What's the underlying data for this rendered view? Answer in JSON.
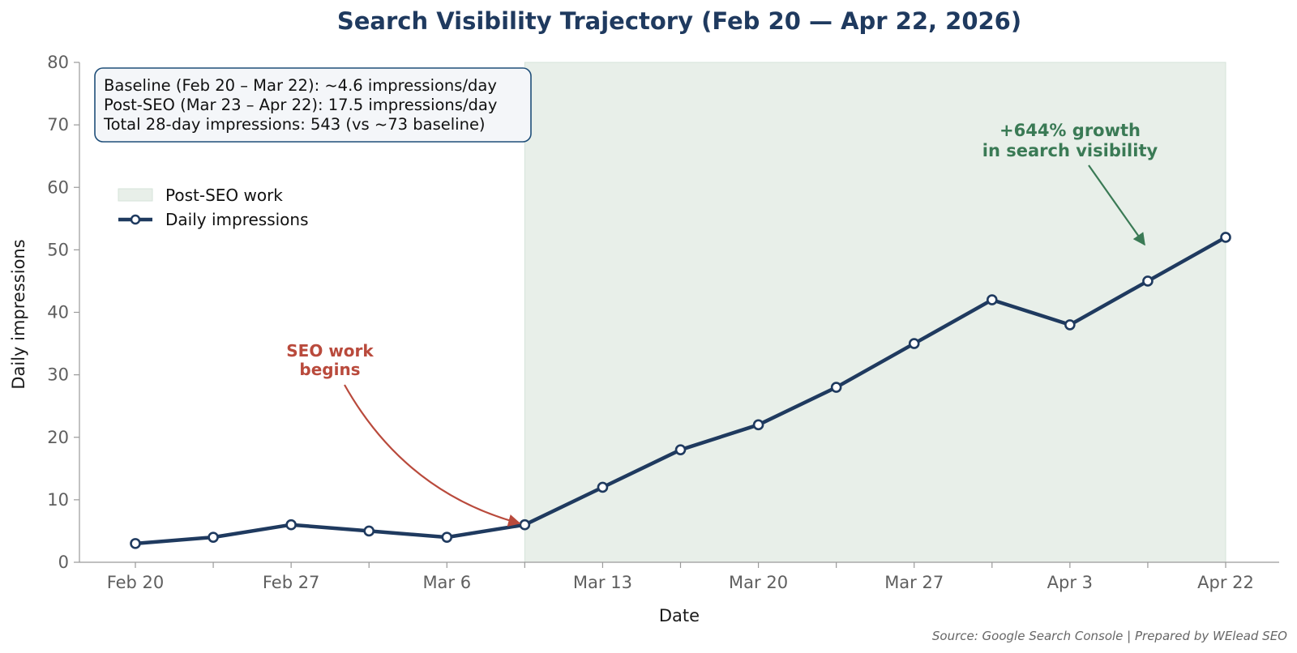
{
  "colors": {
    "line": "#1f3a5f",
    "shade": "#e8efe9",
    "red_annotation": "#b94a3c",
    "green_annotation": "#3a7a55",
    "axis": "#9a9a9a"
  },
  "chart_data": {
    "type": "line",
    "title": "Search Visibility Trajectory (Feb 20 — Apr 22, 2026)",
    "xlabel": "Date",
    "ylabel": "Daily impressions",
    "ylim": [
      0,
      80
    ],
    "y_ticks": [
      0,
      10,
      20,
      30,
      40,
      50,
      60,
      70,
      80
    ],
    "x_positions": [
      0,
      1,
      2,
      3,
      4,
      5,
      6,
      7,
      8,
      9,
      10,
      11,
      12,
      13,
      14
    ],
    "x_tick_positions": [
      0,
      1,
      2,
      3,
      4,
      5,
      6,
      7,
      8,
      9,
      10,
      11,
      12,
      13,
      14
    ],
    "x_tick_labels": [
      "Feb 20",
      "",
      "Feb 27",
      "",
      "Mar 6",
      "",
      "Mar 13",
      "",
      "Mar 20",
      "",
      "Mar 27",
      "",
      "Apr 3",
      "",
      "Apr 22"
    ],
    "series": [
      {
        "name": "Daily impressions",
        "values": [
          3,
          4,
          6,
          5,
          4,
          6,
          12,
          18,
          22,
          28,
          35,
          42,
          38,
          45,
          52
        ]
      }
    ],
    "shaded_region": {
      "label": "Post-SEO work",
      "x_start": 5,
      "x_end": 14
    },
    "legend": {
      "placement": "upper-left",
      "items": [
        {
          "label": "Post-SEO work",
          "kind": "patch"
        },
        {
          "label": "Daily impressions",
          "kind": "line"
        }
      ]
    },
    "info_box": [
      "Baseline (Feb 20 – Mar 22):  ~4.6 impressions/day",
      "Post-SEO (Mar 23 – Apr 22):  17.5 impressions/day",
      "Total 28-day impressions: 543  (vs ~73 baseline)"
    ],
    "annotations": [
      {
        "lines": [
          "SEO work",
          "begins"
        ],
        "target_x": 5,
        "target_y": 6,
        "color": "red"
      },
      {
        "lines": [
          "+644% growth",
          "in search visibility"
        ],
        "target_x": 13,
        "target_y": 50,
        "color": "green"
      }
    ],
    "source_note": "Source: Google Search Console  |  Prepared by WElead SEO",
    "grid": false
  }
}
